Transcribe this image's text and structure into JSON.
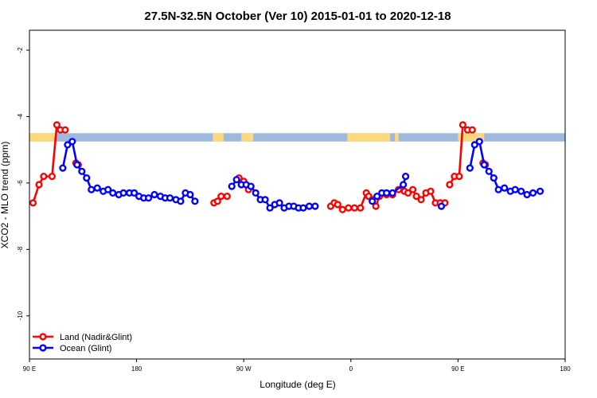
{
  "chart_data": {
    "type": "line",
    "title": "27.5N-32.5N October (Ver 10)   2015-01-01 to 2020-12-18",
    "xlabel": "Longitude (deg E)",
    "ylabel": "XCO2 - MLO trend (ppm)",
    "x_unit_note": "longitude in degrees east, shown on an extended axis from 90 E to 180 over 450 degrees",
    "xlim": [
      90,
      540
    ],
    "ylim": [
      -11.3,
      -1.4
    ],
    "x_ticks": [
      {
        "value": 90,
        "label": "90 E"
      },
      {
        "value": 180,
        "label": "180"
      },
      {
        "value": 270,
        "label": "90 W"
      },
      {
        "value": 360,
        "label": "0"
      },
      {
        "value": 450,
        "label": "90 E"
      },
      {
        "value": 540,
        "label": "180"
      }
    ],
    "y_ticks": [
      {
        "value": -2,
        "label": "-2"
      },
      {
        "value": -4,
        "label": "-4"
      },
      {
        "value": -6,
        "label": "-6"
      },
      {
        "value": -8,
        "label": "-8"
      },
      {
        "value": -10,
        "label": "-10"
      }
    ],
    "grid": false,
    "legend_position": "bottom-left",
    "map_strip": {
      "y_range": [
        -4.75,
        -4.5
      ],
      "ocean_color": "#9eb8de",
      "land_color": "#fcd97c",
      "land_segments": [
        [
          90,
          110
        ],
        [
          110,
          112
        ],
        [
          244,
          253
        ],
        [
          268,
          278
        ],
        [
          357,
          393
        ],
        [
          397,
          400
        ],
        [
          450,
          470
        ],
        [
          470,
          472
        ]
      ]
    },
    "series": [
      {
        "name": "Land (Nadir&Glint)",
        "color": "#ff0000",
        "segments": [
          [
            [
              93,
              -6.6
            ],
            [
              98,
              -6.05
            ],
            [
              102,
              -5.8
            ],
            [
              109,
              -5.8
            ],
            [
              113,
              -4.25
            ],
            [
              116,
              -4.4
            ],
            [
              120,
              -4.4
            ]
          ],
          [
            [
              129,
              -5.4
            ],
            [
              131,
              -5.45
            ]
          ],
          [
            [
              245,
              -6.6
            ],
            [
              248,
              -6.55
            ],
            [
              251,
              -6.4
            ],
            [
              256,
              -6.4
            ]
          ],
          [
            [
              266,
              -5.85
            ],
            [
              270,
              -5.95
            ],
            [
              274,
              -6.2
            ]
          ],
          [
            [
              343,
              -6.7
            ],
            [
              346,
              -6.6
            ],
            [
              349,
              -6.65
            ],
            [
              353,
              -6.8
            ],
            [
              358,
              -6.75
            ],
            [
              363,
              -6.75
            ],
            [
              368,
              -6.75
            ],
            [
              373,
              -6.3
            ],
            [
              375,
              -6.4
            ],
            [
              378,
              -6.5
            ],
            [
              381,
              -6.7
            ],
            [
              384,
              -6.4
            ],
            [
              390,
              -6.35
            ],
            [
              395,
              -6.35
            ],
            [
              400,
              -6.2
            ],
            [
              405,
              -6.25
            ],
            [
              408,
              -6.3
            ],
            [
              412,
              -6.2
            ],
            [
              415,
              -6.4
            ],
            [
              419,
              -6.5
            ],
            [
              423,
              -6.3
            ],
            [
              427,
              -6.25
            ],
            [
              431,
              -6.6
            ],
            [
              435,
              -6.6
            ],
            [
              439,
              -6.6
            ]
          ],
          [
            [
              443,
              -6.05
            ],
            [
              447,
              -5.8
            ],
            [
              451,
              -5.8
            ],
            [
              454,
              -4.25
            ],
            [
              458,
              -4.4
            ],
            [
              462,
              -4.4
            ]
          ],
          [
            [
              471,
              -5.4
            ],
            [
              473,
              -5.45
            ]
          ]
        ]
      },
      {
        "name": "Ocean (Glint)",
        "color": "#0000ff",
        "segments": [
          [
            [
              118,
              -5.55
            ],
            [
              122,
              -4.85
            ],
            [
              126,
              -4.75
            ],
            [
              130,
              -5.45
            ],
            [
              134,
              -5.65
            ],
            [
              138,
              -5.85
            ],
            [
              142,
              -6.2
            ],
            [
              147,
              -6.15
            ],
            [
              152,
              -6.25
            ],
            [
              156,
              -6.2
            ],
            [
              160,
              -6.3
            ],
            [
              165,
              -6.35
            ],
            [
              169,
              -6.3
            ],
            [
              174,
              -6.3
            ],
            [
              178,
              -6.3
            ],
            [
              182,
              -6.4
            ],
            [
              186,
              -6.45
            ],
            [
              190,
              -6.45
            ],
            [
              195,
              -6.35
            ],
            [
              200,
              -6.4
            ],
            [
              204,
              -6.45
            ],
            [
              208,
              -6.45
            ],
            [
              213,
              -6.5
            ],
            [
              217,
              -6.55
            ],
            [
              221,
              -6.3
            ],
            [
              225,
              -6.35
            ],
            [
              229,
              -6.55
            ]
          ],
          [
            [
              260,
              -6.1
            ],
            [
              264,
              -5.9
            ],
            [
              268,
              -6.05
            ],
            [
              272,
              -6.05
            ],
            [
              276,
              -6.1
            ],
            [
              280,
              -6.3
            ],
            [
              284,
              -6.5
            ],
            [
              288,
              -6.5
            ],
            [
              292,
              -6.75
            ],
            [
              296,
              -6.65
            ],
            [
              300,
              -6.6
            ],
            [
              304,
              -6.75
            ],
            [
              308,
              -6.7
            ],
            [
              312,
              -6.7
            ],
            [
              316,
              -6.75
            ],
            [
              320,
              -6.75
            ],
            [
              325,
              -6.7
            ],
            [
              330,
              -6.7
            ]
          ],
          [
            [
              378,
              -6.55
            ],
            [
              382,
              -6.4
            ],
            [
              386,
              -6.3
            ],
            [
              390,
              -6.3
            ],
            [
              395,
              -6.3
            ],
            [
              404,
              -6.05
            ],
            [
              406,
              -5.8
            ]
          ],
          [
            [
              436,
              -6.7
            ]
          ],
          [
            [
              460,
              -5.55
            ],
            [
              464,
              -4.85
            ],
            [
              468,
              -4.75
            ],
            [
              472,
              -5.45
            ],
            [
              476,
              -5.65
            ],
            [
              480,
              -5.85
            ],
            [
              484,
              -6.2
            ],
            [
              489,
              -6.15
            ],
            [
              494,
              -6.25
            ],
            [
              498,
              -6.2
            ],
            [
              503,
              -6.25
            ],
            [
              508,
              -6.35
            ],
            [
              513,
              -6.3
            ],
            [
              519,
              -6.25
            ]
          ]
        ]
      }
    ]
  }
}
